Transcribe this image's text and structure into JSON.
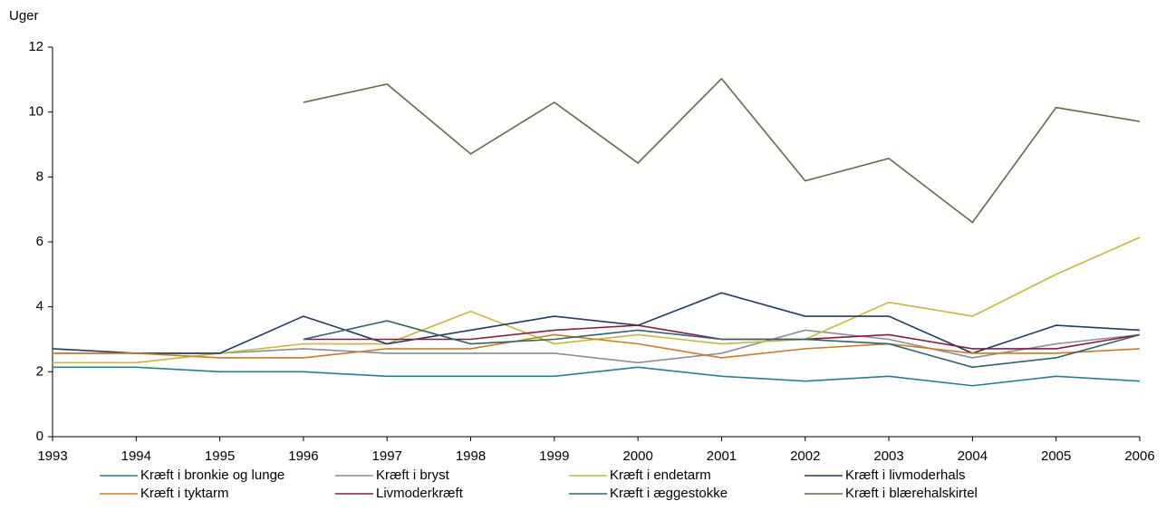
{
  "chart_data": {
    "type": "line",
    "y_label": "Uger",
    "categories": [
      "1993",
      "1994",
      "1995",
      "1996",
      "1997",
      "1998",
      "1999",
      "2000",
      "2001",
      "2002",
      "2003",
      "2004",
      "2005",
      "2006"
    ],
    "ylim": [
      0,
      12
    ],
    "yticks": [
      0,
      2,
      4,
      6,
      8,
      10,
      12
    ],
    "series": [
      {
        "name": "Kræft i bronkie og lunge",
        "color": "#1f7f9f",
        "values": [
          2.14,
          2.14,
          2.0,
          2.0,
          1.86,
          1.86,
          1.86,
          2.14,
          1.86,
          1.71,
          1.86,
          1.57,
          1.86,
          1.71
        ]
      },
      {
        "name": "Kræft i bryst",
        "color": "#8c8c9c",
        "values": [
          2.57,
          2.57,
          2.57,
          2.71,
          2.57,
          2.57,
          2.57,
          2.28,
          2.57,
          3.28,
          3.0,
          2.43,
          2.86,
          3.14
        ]
      },
      {
        "name": "Kræft i endetarm",
        "color": "#c8b830",
        "values": [
          2.28,
          2.28,
          2.57,
          2.86,
          2.86,
          3.86,
          2.86,
          3.14,
          2.86,
          3.0,
          4.14,
          3.71,
          5.0,
          6.14
        ]
      },
      {
        "name": "Kræft i livmoderhals",
        "color": "#1f3a6a",
        "values": [
          2.71,
          2.57,
          2.57,
          3.71,
          2.86,
          3.28,
          3.71,
          3.43,
          4.43,
          3.71,
          3.71,
          2.57,
          3.43,
          3.28
        ]
      },
      {
        "name": "Kræft i tyktarm",
        "color": "#d07a1a",
        "values": [
          2.57,
          2.57,
          2.43,
          2.43,
          2.71,
          2.71,
          3.14,
          2.86,
          2.43,
          2.71,
          2.86,
          2.57,
          2.57,
          2.71
        ]
      },
      {
        "name": "Livmoderkræft",
        "color": "#8a1a40",
        "values": [
          null,
          null,
          null,
          3.0,
          3.0,
          3.0,
          3.28,
          3.43,
          3.0,
          3.0,
          3.14,
          2.71,
          2.71,
          3.14
        ]
      },
      {
        "name": "Kræft i æggestokke",
        "color": "#2a6670",
        "values": [
          null,
          null,
          null,
          3.0,
          3.57,
          2.86,
          3.0,
          3.28,
          3.0,
          3.0,
          2.86,
          2.14,
          2.43,
          3.14
        ]
      },
      {
        "name": "Kræft i blærehalskirtel",
        "color": "#6b6645",
        "values": [
          null,
          null,
          null,
          10.3,
          10.86,
          8.71,
          10.3,
          8.43,
          11.03,
          7.88,
          8.57,
          6.6,
          10.14,
          9.71
        ]
      }
    ]
  }
}
